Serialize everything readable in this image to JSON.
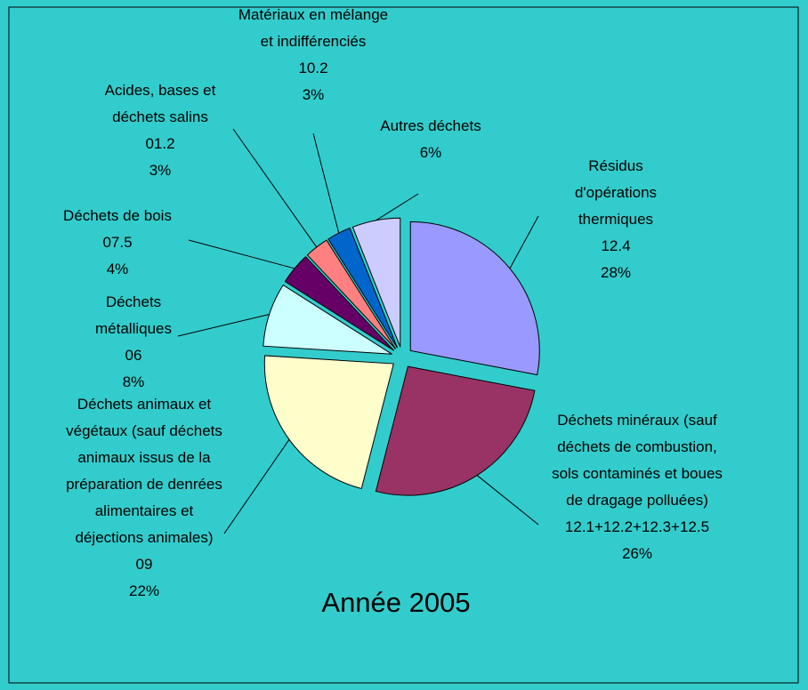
{
  "chart_data": {
    "type": "pie",
    "title": "Année 2005",
    "categories": [
      "Résidus d'opérations thermiques",
      "Déchets minéraux (sauf déchets de combustion, sols contaminés et boues de dragage polluées)",
      "Déchets animaux et végétaux (sauf déchets animaux issus de la préparation de denrées alimentaires et déjections animales)",
      "Déchets métalliques",
      "Déchets de bois",
      "Acides, bases et déchets salins",
      "Matériaux en mélange et indifférenciés",
      "Autres déchets"
    ],
    "codes": [
      "12.4",
      "12.1+12.2+12.3+12.5",
      "09",
      "06",
      "07.5",
      "01.2",
      "10.2",
      null
    ],
    "values": [
      28,
      26,
      22,
      8,
      4,
      3,
      3,
      6
    ],
    "value_labels": [
      "28%",
      "26%",
      "22%",
      "8%",
      "4%",
      "3%",
      "3%",
      "6%"
    ],
    "colors": [
      "#9999ff",
      "#993366",
      "#ffffcc",
      "#ccffff",
      "#660066",
      "#ff8080",
      "#0066cc",
      "#ccccff"
    ]
  }
}
